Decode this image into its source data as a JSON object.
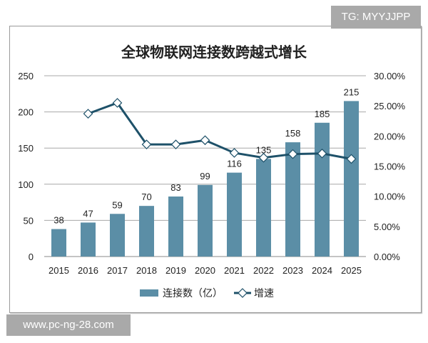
{
  "watermarks": {
    "top": "TG: MYYJJPP",
    "bottom": "www.pc-ng-28.com"
  },
  "chart_data": {
    "type": "bar+line",
    "title": "全球物联网连接数跨越式增长",
    "categories": [
      "2015",
      "2016",
      "2017",
      "2018",
      "2019",
      "2020",
      "2021",
      "2022",
      "2023",
      "2024",
      "2025"
    ],
    "series": [
      {
        "name": "连接数（亿）",
        "type": "bar",
        "axis": "left",
        "color": "#5b8ea6",
        "values": [
          38,
          47,
          59,
          70,
          83,
          99,
          116,
          135,
          158,
          185,
          215
        ]
      },
      {
        "name": "增速",
        "type": "line",
        "axis": "right",
        "color": "#1e5169",
        "values": [
          null,
          23.7,
          25.5,
          18.6,
          18.6,
          19.3,
          17.2,
          16.4,
          17.0,
          17.1,
          16.2
        ]
      }
    ],
    "left_axis": {
      "ylim": [
        0,
        250
      ],
      "ticks": [
        "0",
        "50",
        "100",
        "150",
        "200",
        "250"
      ]
    },
    "right_axis": {
      "ylim": [
        0,
        30
      ],
      "ticks": [
        "0.00%",
        "5.00%",
        "10.00%",
        "15.00%",
        "20.00%",
        "25.00%",
        "30.00%"
      ]
    },
    "grid": true,
    "legend": "bottom"
  }
}
